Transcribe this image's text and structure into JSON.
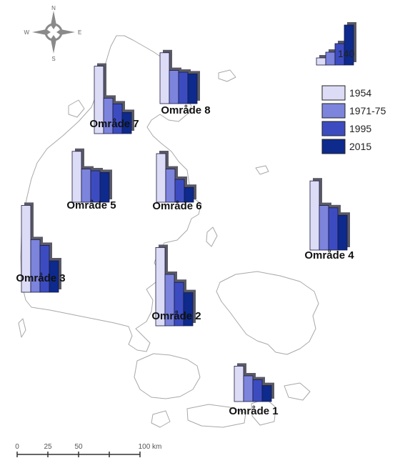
{
  "compass": {
    "n": "N",
    "s": "S",
    "e": "E",
    "w": "W"
  },
  "legend": {
    "reference_value": "140",
    "items": [
      {
        "label": "1954",
        "color": "#dcdcf6"
      },
      {
        "label": "1971-75",
        "color": "#7c84dc"
      },
      {
        "label": "1995",
        "color": "#3c4cc0"
      },
      {
        "label": "2015",
        "color": "#0d2a8c"
      }
    ]
  },
  "scale_bar": {
    "ticks": [
      "0",
      "25",
      "50",
      "100 km"
    ]
  },
  "chart_data": {
    "type": "bar",
    "description_units": "relative bar height, legend reference bar = 140",
    "categories": [
      "1954",
      "1971-75",
      "1995",
      "2015"
    ],
    "areas": [
      {
        "name": "Område 1",
        "values": [
          62,
          45,
          38,
          28
        ]
      },
      {
        "name": "Område 2",
        "values": [
          137,
          90,
          76,
          58
        ]
      },
      {
        "name": "Område 3",
        "values": [
          152,
          92,
          82,
          55
        ]
      },
      {
        "name": "Område 4",
        "values": [
          121,
          78,
          74,
          61
        ]
      },
      {
        "name": "Område 5",
        "values": [
          89,
          58,
          55,
          52
        ]
      },
      {
        "name": "Område 6",
        "values": [
          85,
          58,
          40,
          26
        ]
      },
      {
        "name": "Område 7",
        "values": [
          118,
          62,
          52,
          37
        ]
      },
      {
        "name": "Område 8",
        "values": [
          89,
          58,
          55,
          52
        ]
      }
    ]
  }
}
